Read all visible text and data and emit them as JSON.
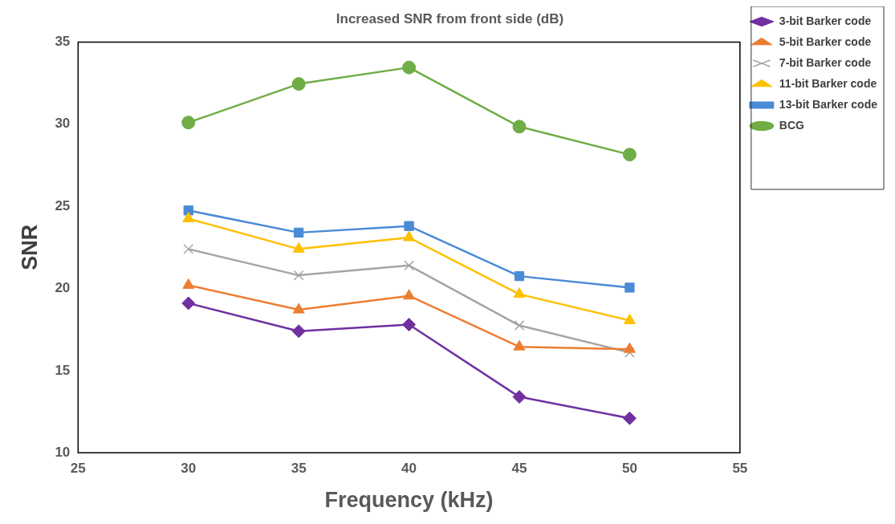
{
  "chart_data": {
    "type": "line",
    "title": "Increased SNR from front side (dB)",
    "xlabel": "Frequency (kHz)",
    "ylabel": "SNR",
    "x": [
      30,
      35,
      40,
      45,
      50
    ],
    "xlim": [
      25,
      55
    ],
    "xticks": [
      25,
      30,
      35,
      40,
      45,
      50,
      55
    ],
    "ylim": [
      10,
      35
    ],
    "yticks": [
      10,
      15,
      20,
      25,
      30,
      35
    ],
    "grid": false,
    "legend": "top right",
    "line_style": "solid",
    "series": [
      {
        "name": "3-bit Barker code",
        "color": "#7030a0",
        "marker": "diamond",
        "values": [
          19.1,
          17.4,
          17.8,
          13.4,
          12.1
        ]
      },
      {
        "name": "5-bit Barker code",
        "color": "#ed7d31",
        "marker": "triangle",
        "values": [
          20.2,
          18.7,
          19.55,
          16.45,
          16.3
        ]
      },
      {
        "name": "7-bit Barker code",
        "color": "#a5a5a5",
        "marker": "cross",
        "values": [
          22.4,
          20.8,
          21.4,
          17.75,
          16.1
        ]
      },
      {
        "name": "11-bit Barker code",
        "color": "#ffc000",
        "marker": "triangle",
        "values": [
          24.25,
          22.4,
          23.1,
          19.65,
          18.05
        ]
      },
      {
        "name": "13-bit Barker code",
        "color": "#4a8ad6",
        "marker": "square",
        "values": [
          24.75,
          23.4,
          23.8,
          20.75,
          20.05
        ]
      },
      {
        "name": "BCG",
        "color": "#70ad47",
        "marker": "circle",
        "values": [
          30.1,
          32.45,
          33.45,
          29.85,
          28.15
        ]
      }
    ]
  }
}
